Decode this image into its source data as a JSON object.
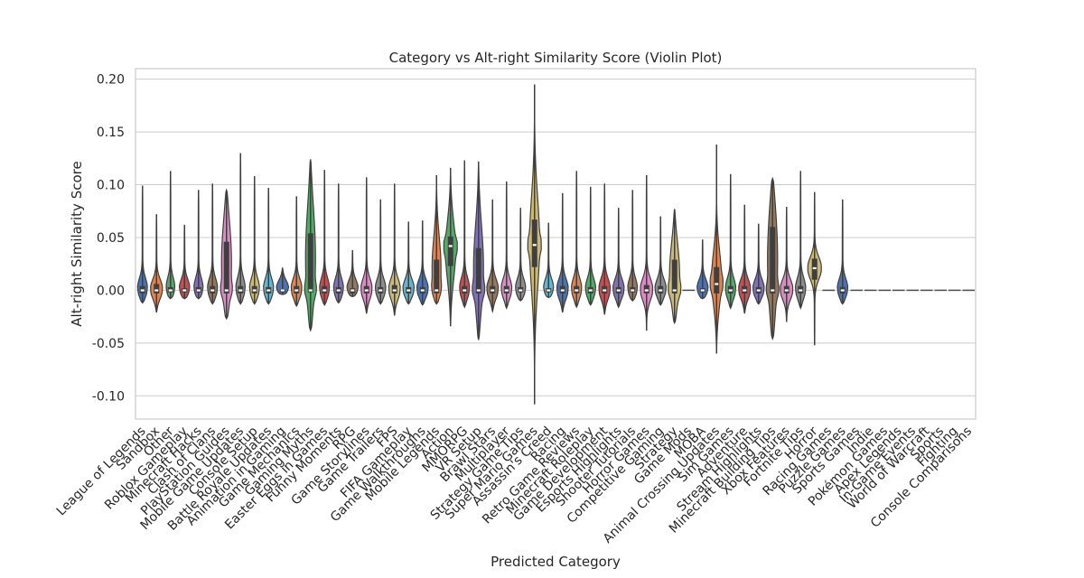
{
  "chart_data": {
    "type": "violin",
    "title": "Category vs Alt-right Similarity Score (Violin Plot)",
    "xlabel": "Predicted Category",
    "ylabel": "Alt-right Similarity Score",
    "ylim": [
      -0.122,
      0.21
    ],
    "yticks": [
      "-0.10",
      "-0.05",
      "0.00",
      "0.05",
      "0.10",
      "0.15",
      "0.20"
    ],
    "ytick_values": [
      -0.1,
      -0.05,
      0.0,
      0.05,
      0.1,
      0.15,
      0.2
    ],
    "grid": true,
    "palette": [
      "#4c72b0",
      "#dd8452",
      "#55a868",
      "#c44e52",
      "#8172b3",
      "#937860",
      "#da8bc3",
      "#8c8c8c",
      "#ccb974",
      "#64b5cd"
    ],
    "categories": [
      {
        "name": "League of Legends",
        "min": -0.012,
        "max": 0.099,
        "q1": -0.003,
        "median": 0.0,
        "q3": 0.004
      },
      {
        "name": "Sandbox",
        "min": -0.021,
        "max": 0.072,
        "q1": -0.003,
        "median": 0.0,
        "q3": 0.006
      },
      {
        "name": "Other",
        "min": -0.008,
        "max": 0.113,
        "q1": -0.002,
        "median": 0.0,
        "q3": 0.003
      },
      {
        "name": "Roblox Gameplay",
        "min": -0.008,
        "max": 0.062,
        "q1": -0.002,
        "median": 0.0,
        "q3": 0.002
      },
      {
        "name": "Minecraft Hacks",
        "min": -0.008,
        "max": 0.095,
        "q1": -0.002,
        "median": 0.0,
        "q3": 0.003
      },
      {
        "name": "Clash of Clans",
        "min": -0.013,
        "max": 0.101,
        "q1": -0.003,
        "median": 0.0,
        "q3": 0.004
      },
      {
        "name": "PlayStation Guides",
        "min": -0.027,
        "max": 0.095,
        "q1": -0.003,
        "median": 0.0,
        "q3": 0.046
      },
      {
        "name": "Mobile Game Updates",
        "min": -0.013,
        "max": 0.13,
        "q1": -0.003,
        "median": 0.0,
        "q3": 0.004
      },
      {
        "name": "Console Setup",
        "min": -0.013,
        "max": 0.108,
        "q1": -0.003,
        "median": 0.0,
        "q3": 0.004
      },
      {
        "name": "Battle Royale Updates",
        "min": -0.013,
        "max": 0.097,
        "q1": -0.003,
        "median": 0.0,
        "q3": 0.003
      },
      {
        "name": "Animation in Gaming",
        "min": -0.004,
        "max": 0.021,
        "q1": -0.002,
        "median": 0.0,
        "q3": 0.001
      },
      {
        "name": "Game Mechanics",
        "min": -0.015,
        "max": 0.089,
        "q1": -0.003,
        "median": 0.0,
        "q3": 0.004
      },
      {
        "name": "Gaming Myths",
        "min": -0.038,
        "max": 0.124,
        "q1": -0.002,
        "median": 0.0,
        "q3": 0.054
      },
      {
        "name": "Easter Eggs in Games",
        "min": -0.014,
        "max": 0.114,
        "q1": -0.003,
        "median": 0.0,
        "q3": 0.004
      },
      {
        "name": "Funny Moments",
        "min": -0.012,
        "max": 0.101,
        "q1": -0.003,
        "median": 0.0,
        "q3": 0.003
      },
      {
        "name": "RPG",
        "min": -0.006,
        "max": 0.038,
        "q1": -0.003,
        "median": 0.0,
        "q3": 0.002
      },
      {
        "name": "Game Storylines",
        "min": -0.022,
        "max": 0.107,
        "q1": -0.003,
        "median": 0.0,
        "q3": 0.004
      },
      {
        "name": "Game Trailers",
        "min": -0.013,
        "max": 0.086,
        "q1": -0.003,
        "median": 0.0,
        "q3": 0.003
      },
      {
        "name": "FPS",
        "min": -0.024,
        "max": 0.101,
        "q1": -0.003,
        "median": 0.0,
        "q3": 0.005
      },
      {
        "name": "FIFA Gameplay",
        "min": -0.013,
        "max": 0.065,
        "q1": -0.003,
        "median": 0.0,
        "q3": 0.003
      },
      {
        "name": "Game Walkthroughs",
        "min": -0.014,
        "max": 0.066,
        "q1": -0.003,
        "median": 0.0,
        "q3": 0.003
      },
      {
        "name": "Mobile Legends",
        "min": -0.013,
        "max": 0.109,
        "q1": -0.003,
        "median": 0.0,
        "q3": 0.029
      },
      {
        "name": "Action",
        "min": -0.034,
        "max": 0.116,
        "q1": 0.023,
        "median": 0.042,
        "q3": 0.051
      },
      {
        "name": "MMORPG",
        "min": -0.016,
        "max": 0.123,
        "q1": -0.003,
        "median": 0.0,
        "q3": 0.004
      },
      {
        "name": "VR Setup",
        "min": -0.047,
        "max": 0.122,
        "q1": -0.003,
        "median": 0.0,
        "q3": 0.04
      },
      {
        "name": "Brawl Stars",
        "min": -0.02,
        "max": 0.086,
        "q1": -0.003,
        "median": 0.0,
        "q3": 0.004
      },
      {
        "name": "Multiplayer",
        "min": -0.017,
        "max": 0.103,
        "q1": -0.003,
        "median": 0.0,
        "q3": 0.004
      },
      {
        "name": "Strategy Game Tips",
        "min": -0.01,
        "max": 0.078,
        "q1": -0.002,
        "median": 0.0,
        "q3": 0.003
      },
      {
        "name": "Super Mario Games",
        "min": -0.108,
        "max": 0.195,
        "q1": 0.022,
        "median": 0.043,
        "q3": 0.067
      },
      {
        "name": "Assassin's Creed",
        "min": -0.007,
        "max": 0.064,
        "q1": -0.002,
        "median": 0.0,
        "q3": 0.002
      },
      {
        "name": "Racing",
        "min": -0.021,
        "max": 0.092,
        "q1": -0.003,
        "median": 0.0,
        "q3": 0.004
      },
      {
        "name": "Retro Game Reviews",
        "min": -0.016,
        "max": 0.113,
        "q1": -0.003,
        "median": 0.0,
        "q3": 0.004
      },
      {
        "name": "Minecraft Roleplay",
        "min": -0.014,
        "max": 0.098,
        "q1": -0.003,
        "median": 0.0,
        "q3": 0.003
      },
      {
        "name": "Game Development",
        "min": -0.023,
        "max": 0.101,
        "q1": -0.003,
        "median": 0.0,
        "q3": 0.004
      },
      {
        "name": "Esports Highlights",
        "min": -0.016,
        "max": 0.078,
        "q1": -0.003,
        "median": 0.0,
        "q3": 0.003
      },
      {
        "name": "Shooter Tutorials",
        "min": -0.01,
        "max": 0.095,
        "q1": -0.002,
        "median": 0.0,
        "q3": 0.003
      },
      {
        "name": "Horror Games",
        "min": -0.038,
        "max": 0.109,
        "q1": -0.003,
        "median": 0.0,
        "q3": 0.005
      },
      {
        "name": "Competitive Gaming",
        "min": -0.014,
        "max": 0.07,
        "q1": -0.003,
        "median": 0.0,
        "q3": 0.004
      },
      {
        "name": "Strategy",
        "min": -0.031,
        "max": 0.077,
        "q1": -0.003,
        "median": 0.0,
        "q3": 0.029
      },
      {
        "name": "Game Mods",
        "min": 0.0,
        "max": 0.0,
        "q1": 0.0,
        "median": 0.0,
        "q3": 0.0
      },
      {
        "name": "MOBA",
        "min": -0.008,
        "max": 0.048,
        "q1": -0.002,
        "median": 0.0,
        "q3": 0.002
      },
      {
        "name": "Animal Crossing Updates",
        "min": -0.06,
        "max": 0.138,
        "q1": -0.003,
        "median": 0.006,
        "q3": 0.022
      },
      {
        "name": "Sim Games",
        "min": -0.017,
        "max": 0.11,
        "q1": -0.003,
        "median": 0.0,
        "q3": 0.004
      },
      {
        "name": "Adventure",
        "min": -0.022,
        "max": 0.081,
        "q1": -0.003,
        "median": 0.0,
        "q3": 0.004
      },
      {
        "name": "Stream Highlights",
        "min": -0.013,
        "max": 0.063,
        "q1": -0.003,
        "median": 0.0,
        "q3": 0.003
      },
      {
        "name": "Minecraft Building Tips",
        "min": -0.046,
        "max": 0.106,
        "q1": -0.003,
        "median": 0.0,
        "q3": 0.06
      },
      {
        "name": "Xbox Features",
        "min": -0.03,
        "max": 0.079,
        "q1": -0.003,
        "median": 0.0,
        "q3": 0.004
      },
      {
        "name": "Fortnite Tips",
        "min": -0.017,
        "max": 0.113,
        "q1": -0.003,
        "median": 0.0,
        "q3": 0.004
      },
      {
        "name": "Horror",
        "min": -0.052,
        "max": 0.093,
        "q1": 0.01,
        "median": 0.021,
        "q3": 0.03
      },
      {
        "name": "Racing Games",
        "min": 0.0,
        "max": 0.0,
        "q1": 0.0,
        "median": 0.0,
        "q3": 0.0
      },
      {
        "name": "Puzzle Games",
        "min": -0.013,
        "max": 0.086,
        "q1": -0.003,
        "median": 0.0,
        "q3": 0.003
      },
      {
        "name": "Sports Games",
        "min": 0.0,
        "max": 0.0,
        "q1": 0.0,
        "median": 0.0,
        "q3": 0.0
      },
      {
        "name": "Indie",
        "min": 0.0,
        "max": 0.0,
        "q1": 0.0,
        "median": 0.0,
        "q3": 0.0
      },
      {
        "name": "Pokémon Games",
        "min": 0.0,
        "max": 0.0,
        "q1": 0.0,
        "median": 0.0,
        "q3": 0.0
      },
      {
        "name": "Apex Legends",
        "min": 0.0,
        "max": 0.0,
        "q1": 0.0,
        "median": 0.0,
        "q3": 0.0
      },
      {
        "name": "In-Game Events",
        "min": 0.0,
        "max": 0.0,
        "q1": 0.0,
        "median": 0.0,
        "q3": 0.0
      },
      {
        "name": "World of Warcraft",
        "min": 0.0,
        "max": 0.0,
        "q1": 0.0,
        "median": 0.0,
        "q3": 0.0
      },
      {
        "name": "Sports",
        "min": 0.0,
        "max": 0.0,
        "q1": 0.0,
        "median": 0.0,
        "q3": 0.0
      },
      {
        "name": "Fighting",
        "min": 0.0,
        "max": 0.0,
        "q1": 0.0,
        "median": 0.0,
        "q3": 0.0
      },
      {
        "name": "Console Comparisons",
        "min": 0.0,
        "max": 0.0,
        "q1": 0.0,
        "median": 0.0,
        "q3": 0.0
      }
    ]
  }
}
